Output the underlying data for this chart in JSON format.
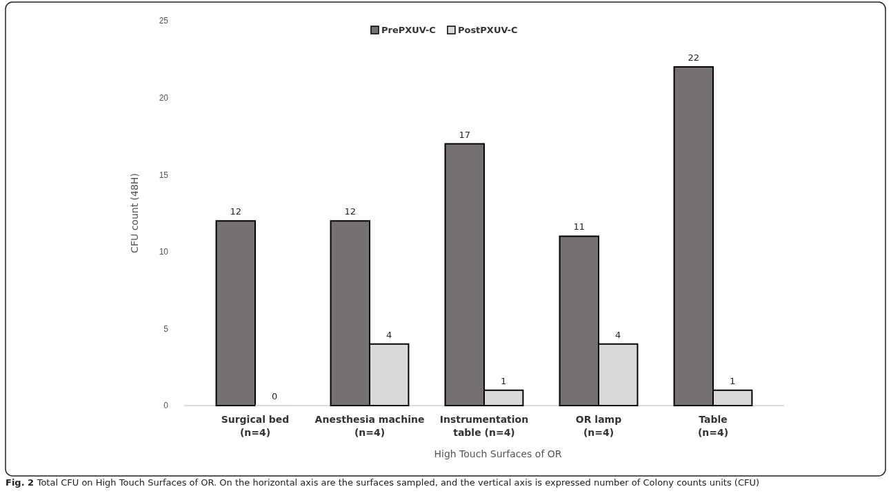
{
  "chart_data": {
    "type": "bar",
    "xlabel": "High Touch Surfaces of OR",
    "ylabel": "CFU count (48H)",
    "categories": [
      "Surgical bed\n(n=4)",
      "Anesthesia machine\n(n=4)",
      "Instrumentation\ntable (n=4)",
      "OR lamp\n(n=4)",
      "Table\n(n=4)"
    ],
    "series": [
      {
        "name": "PrePXUV-C",
        "color": "#767171",
        "values": [
          12,
          12,
          17,
          11,
          22
        ]
      },
      {
        "name": "PostPXUV-C",
        "color": "#d9d9d9",
        "values": [
          0,
          4,
          1,
          4,
          1
        ]
      }
    ],
    "ylim": [
      0,
      25
    ],
    "yticks": [
      0,
      5,
      10,
      15,
      20,
      25
    ],
    "grid": false,
    "legend": "top",
    "data_labels": true,
    "annotations": [
      "Fig. 2 Total CFU on High Touch Surfaces of OR. On the horizontal axis are the surfaces sampled, and the vertical axis is expressed number of Colony counts units (CFU)"
    ]
  }
}
